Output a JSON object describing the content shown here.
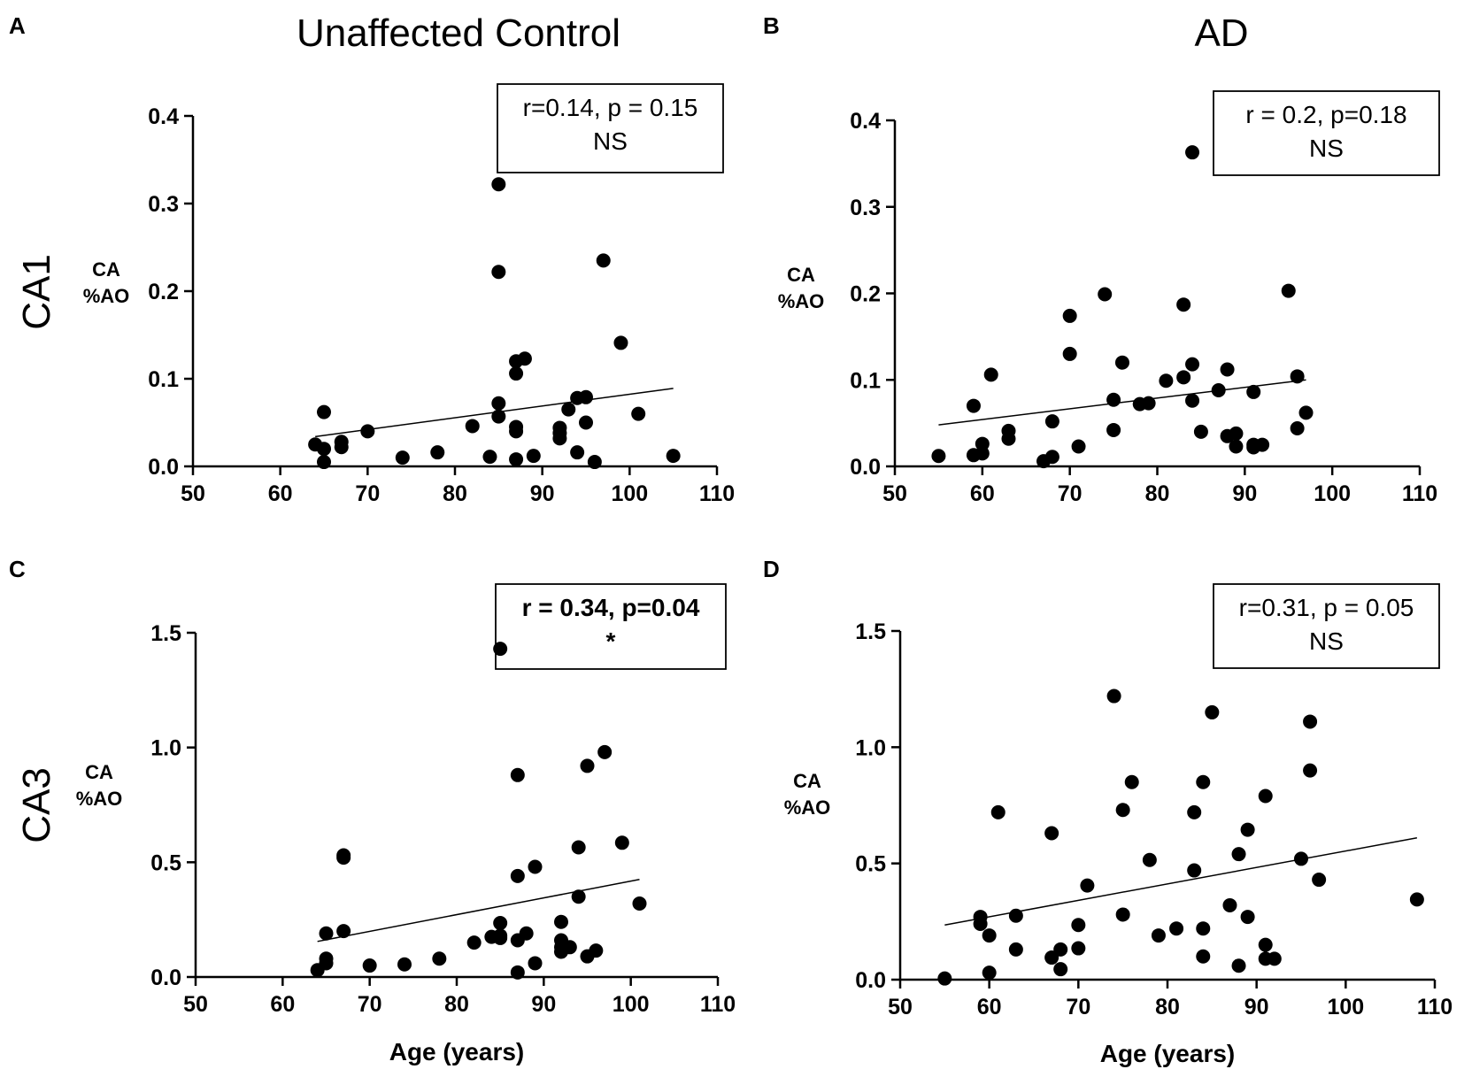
{
  "column_titles": [
    "Unaffected Control",
    "AD"
  ],
  "row_titles": [
    "CA1",
    "CA3"
  ],
  "chart_data": [
    {
      "id": "A",
      "letter": "A",
      "type": "scatter",
      "ylabel": [
        "CA",
        "%AO"
      ],
      "xlabel": "",
      "xlim": [
        50,
        110
      ],
      "xticks": [
        50,
        60,
        70,
        80,
        90,
        100,
        110
      ],
      "ylim": [
        0,
        0.4
      ],
      "yticks": [
        "0.0",
        "0.1",
        "0.2",
        "0.3",
        "0.4"
      ],
      "stats": [
        "r=0.14, p = 0.15",
        "NS"
      ],
      "stats_bold": false,
      "fit": [
        [
          64,
          0.034
        ],
        [
          105,
          0.089
        ]
      ],
      "points": [
        [
          64,
          0.025
        ],
        [
          65,
          0.062
        ],
        [
          65,
          0.02
        ],
        [
          65,
          0.005
        ],
        [
          67,
          0.028
        ],
        [
          67,
          0.022
        ],
        [
          70,
          0.04
        ],
        [
          74,
          0.01
        ],
        [
          78,
          0.016
        ],
        [
          82,
          0.046
        ],
        [
          84,
          0.011
        ],
        [
          85,
          0.322
        ],
        [
          85,
          0.222
        ],
        [
          85,
          0.072
        ],
        [
          85,
          0.057
        ],
        [
          87,
          0.12
        ],
        [
          87,
          0.106
        ],
        [
          87,
          0.045
        ],
        [
          87,
          0.04
        ],
        [
          87,
          0.008
        ],
        [
          88,
          0.123
        ],
        [
          89,
          0.012
        ],
        [
          92,
          0.044
        ],
        [
          92,
          0.038
        ],
        [
          92,
          0.032
        ],
        [
          93,
          0.065
        ],
        [
          94,
          0.078
        ],
        [
          94,
          0.016
        ],
        [
          95,
          0.079
        ],
        [
          95,
          0.05
        ],
        [
          96,
          0.005
        ],
        [
          97,
          0.235
        ],
        [
          99,
          0.141
        ],
        [
          101,
          0.06
        ],
        [
          105,
          0.012
        ]
      ]
    },
    {
      "id": "B",
      "letter": "B",
      "type": "scatter",
      "ylabel": [
        "CA",
        "%AO"
      ],
      "xlabel": "",
      "xlim": [
        50,
        110
      ],
      "xticks": [
        50,
        60,
        70,
        80,
        90,
        100,
        110
      ],
      "ylim": [
        0,
        0.4
      ],
      "yticks": [
        "0.0",
        "0.1",
        "0.2",
        "0.3",
        "0.4"
      ],
      "stats": [
        "r = 0.2, p=0.18",
        "NS"
      ],
      "stats_bold": false,
      "fit": [
        [
          55,
          0.048
        ],
        [
          97,
          0.1
        ]
      ],
      "points": [
        [
          55,
          0.012
        ],
        [
          59,
          0.07
        ],
        [
          59,
          0.013
        ],
        [
          60,
          0.026
        ],
        [
          60,
          0.015
        ],
        [
          61,
          0.106
        ],
        [
          63,
          0.041
        ],
        [
          63,
          0.032
        ],
        [
          67,
          0.006
        ],
        [
          68,
          0.052
        ],
        [
          68,
          0.011
        ],
        [
          70,
          0.174
        ],
        [
          70,
          0.13
        ],
        [
          71,
          0.023
        ],
        [
          74,
          0.199
        ],
        [
          75,
          0.077
        ],
        [
          75,
          0.042
        ],
        [
          76,
          0.12
        ],
        [
          78,
          0.072
        ],
        [
          79,
          0.073
        ],
        [
          81,
          0.099
        ],
        [
          83,
          0.187
        ],
        [
          83,
          0.103
        ],
        [
          84,
          0.363
        ],
        [
          84,
          0.118
        ],
        [
          84,
          0.076
        ],
        [
          85,
          0.04
        ],
        [
          87,
          0.088
        ],
        [
          88,
          0.112
        ],
        [
          88,
          0.035
        ],
        [
          89,
          0.038
        ],
        [
          89,
          0.023
        ],
        [
          91,
          0.086
        ],
        [
          91,
          0.025
        ],
        [
          91,
          0.022
        ],
        [
          92,
          0.025
        ],
        [
          95,
          0.203
        ],
        [
          96,
          0.104
        ],
        [
          96,
          0.044
        ],
        [
          97,
          0.062
        ]
      ]
    },
    {
      "id": "C",
      "letter": "C",
      "type": "scatter",
      "ylabel": [
        "CA",
        "%AO"
      ],
      "xlabel": "Age (years)",
      "xlim": [
        50,
        110
      ],
      "xticks": [
        50,
        60,
        70,
        80,
        90,
        100,
        110
      ],
      "ylim": [
        0,
        1.5
      ],
      "yticks": [
        "0.0",
        "0.5",
        "1.0",
        "1.5"
      ],
      "stats": [
        "r = 0.34, p=0.04",
        "*"
      ],
      "stats_bold": true,
      "fit": [
        [
          64,
          0.155
        ],
        [
          101,
          0.425
        ]
      ],
      "points": [
        [
          64,
          0.03
        ],
        [
          65,
          0.19
        ],
        [
          65,
          0.08
        ],
        [
          65,
          0.06
        ],
        [
          67,
          0.53
        ],
        [
          67,
          0.52
        ],
        [
          67,
          0.2
        ],
        [
          70,
          0.05
        ],
        [
          74,
          0.055
        ],
        [
          78,
          0.08
        ],
        [
          82,
          0.15
        ],
        [
          84,
          0.175
        ],
        [
          85,
          1.43
        ],
        [
          85,
          0.235
        ],
        [
          85,
          0.18
        ],
        [
          85,
          0.17
        ],
        [
          87,
          0.88
        ],
        [
          87,
          0.44
        ],
        [
          87,
          0.16
        ],
        [
          87,
          0.02
        ],
        [
          88,
          0.19
        ],
        [
          89,
          0.48
        ],
        [
          89,
          0.06
        ],
        [
          92,
          0.24
        ],
        [
          92,
          0.16
        ],
        [
          92,
          0.13
        ],
        [
          92,
          0.11
        ],
        [
          93,
          0.13
        ],
        [
          94,
          0.565
        ],
        [
          94,
          0.35
        ],
        [
          95,
          0.92
        ],
        [
          95,
          0.09
        ],
        [
          96,
          0.115
        ],
        [
          97,
          0.98
        ],
        [
          99,
          0.585
        ],
        [
          101,
          0.32
        ]
      ]
    },
    {
      "id": "D",
      "letter": "D",
      "type": "scatter",
      "ylabel": [
        "CA",
        "%AO"
      ],
      "xlabel": "Age (years)",
      "xlim": [
        50,
        110
      ],
      "xticks": [
        50,
        60,
        70,
        80,
        90,
        100,
        110
      ],
      "ylim": [
        0,
        1.5
      ],
      "yticks": [
        "0.0",
        "0.5",
        "1.0",
        "1.5"
      ],
      "stats": [
        "r=0.31, p = 0.05",
        "NS"
      ],
      "stats_bold": false,
      "fit": [
        [
          55,
          0.235
        ],
        [
          108,
          0.61
        ]
      ],
      "points": [
        [
          55,
          0.005
        ],
        [
          59,
          0.27
        ],
        [
          59,
          0.24
        ],
        [
          60,
          0.19
        ],
        [
          60,
          0.03
        ],
        [
          61,
          0.72
        ],
        [
          63,
          0.275
        ],
        [
          63,
          0.13
        ],
        [
          67,
          0.63
        ],
        [
          67,
          0.095
        ],
        [
          68,
          0.13
        ],
        [
          68,
          0.045
        ],
        [
          70,
          0.235
        ],
        [
          70,
          0.135
        ],
        [
          71,
          0.405
        ],
        [
          74,
          1.22
        ],
        [
          75,
          0.73
        ],
        [
          75,
          0.28
        ],
        [
          76,
          0.85
        ],
        [
          78,
          0.515
        ],
        [
          79,
          0.19
        ],
        [
          81,
          0.22
        ],
        [
          83,
          0.72
        ],
        [
          83,
          0.47
        ],
        [
          84,
          0.85
        ],
        [
          84,
          0.22
        ],
        [
          84,
          0.1
        ],
        [
          85,
          1.15
        ],
        [
          87,
          0.32
        ],
        [
          88,
          0.54
        ],
        [
          88,
          0.06
        ],
        [
          89,
          0.645
        ],
        [
          89,
          0.27
        ],
        [
          91,
          0.79
        ],
        [
          91,
          0.15
        ],
        [
          91,
          0.09
        ],
        [
          92,
          0.09
        ],
        [
          95,
          0.52
        ],
        [
          96,
          1.11
        ],
        [
          96,
          0.9
        ],
        [
          97,
          0.43
        ],
        [
          108,
          0.345
        ]
      ]
    }
  ]
}
